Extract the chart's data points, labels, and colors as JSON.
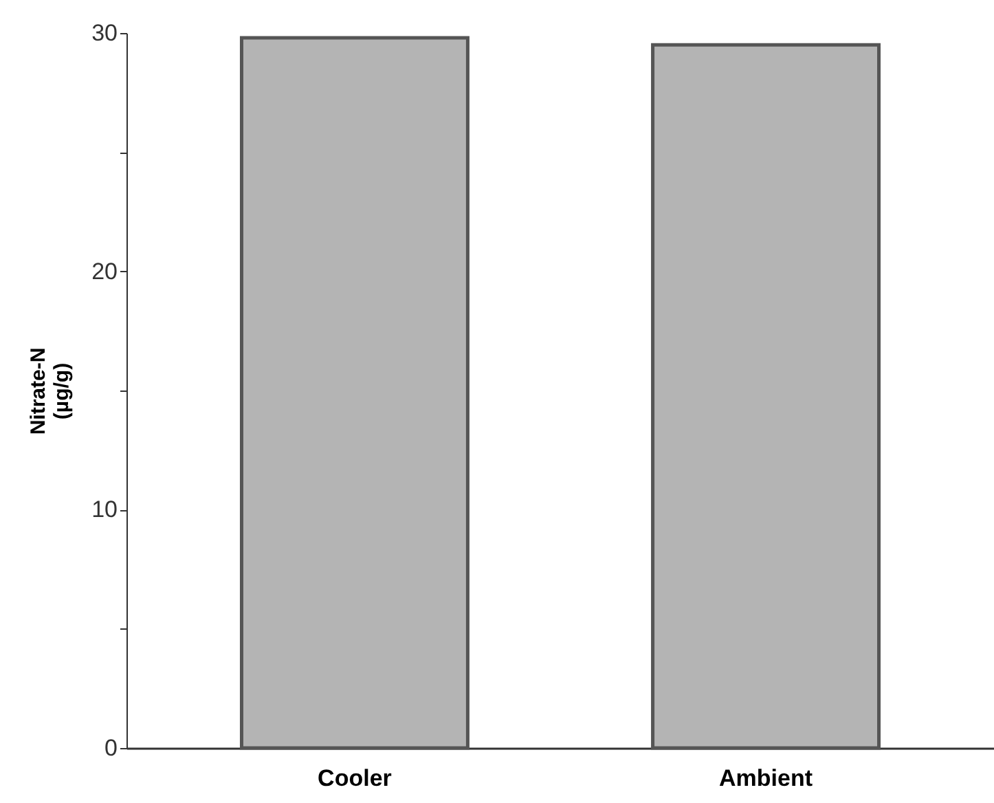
{
  "chart_data": {
    "type": "bar",
    "categories": [
      "Cooler",
      "Ambient"
    ],
    "values": [
      29.8,
      29.5
    ],
    "color": "#b4b4b4",
    "ylabel": "Nitrate-N\n(µg/g)",
    "ylim": [
      0,
      30
    ],
    "yticks": [
      0,
      {
        "value": 5,
        "label": null
      },
      10,
      {
        "value": 15,
        "label": null
      },
      20,
      {
        "value": 25,
        "label": null
      },
      30
    ],
    "grid": false
  }
}
